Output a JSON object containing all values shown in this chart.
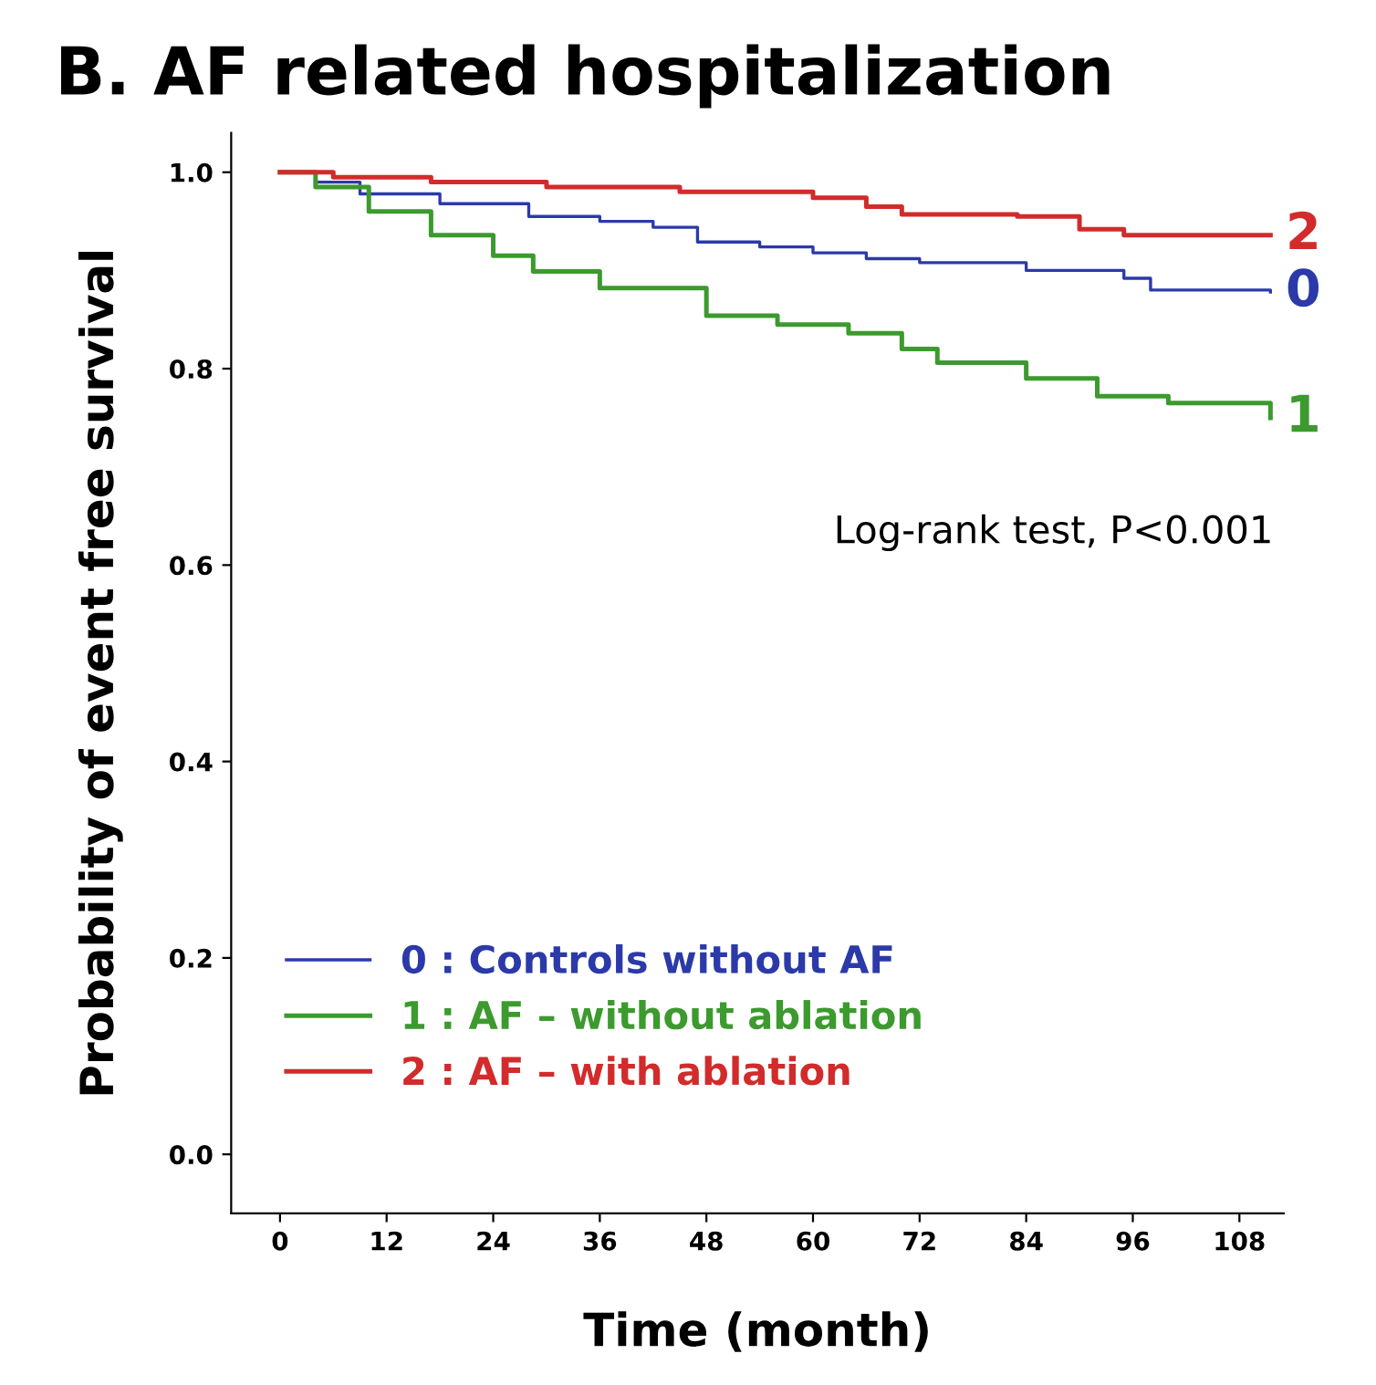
{
  "chart_data": {
    "type": "step",
    "title": "B. AF related hospitalization",
    "xlabel": "Time (month)",
    "ylabel": "Probability of event free survival",
    "xlim": [
      -5.5,
      113
    ],
    "xticks": [
      0,
      12,
      24,
      36,
      48,
      60,
      72,
      84,
      96,
      108
    ],
    "ylim": [
      -0.06,
      1.04
    ],
    "yticks": [
      {
        "value": 0,
        "label": "0.0"
      },
      {
        "value": 0.2,
        "label": "0.2"
      },
      {
        "value": 0.4,
        "label": "0.4"
      },
      {
        "value": 0.6,
        "label": "0.6"
      },
      {
        "value": 0.8,
        "label": "0.8"
      },
      {
        "value": 1,
        "label": "1.0"
      }
    ],
    "grid": false,
    "legend": "bottom left",
    "marker": "none",
    "line_style": "solid",
    "series": [
      {
        "name": "0 : Controls without AF",
        "color": "#2b3aa8",
        "x": [
          0,
          4,
          9,
          18,
          28,
          36,
          42,
          47,
          54,
          60,
          66,
          72,
          84,
          95,
          98,
          111.5
        ],
        "values": [
          1.0,
          0.99,
          0.978,
          0.968,
          0.955,
          0.95,
          0.944,
          0.929,
          0.924,
          0.918,
          0.912,
          0.908,
          0.9,
          0.892,
          0.88,
          0.878
        ]
      },
      {
        "name": "1 : AF – without ablation",
        "color": "#3c9a2e",
        "x": [
          0,
          4,
          10,
          17,
          24,
          28.5,
          36,
          48,
          56,
          64,
          70,
          74,
          84,
          92,
          100,
          111.5
        ],
        "values": [
          1.0,
          0.985,
          0.96,
          0.936,
          0.915,
          0.899,
          0.882,
          0.854,
          0.845,
          0.836,
          0.82,
          0.806,
          0.79,
          0.772,
          0.765,
          0.75
        ]
      },
      {
        "name": "2 : AF – with ablation",
        "color": "#d22b2b",
        "x": [
          0,
          6,
          17,
          30,
          45,
          60,
          66,
          70,
          83,
          90,
          95,
          111.5
        ],
        "values": [
          1.0,
          0.995,
          0.99,
          0.985,
          0.98,
          0.974,
          0.965,
          0.957,
          0.955,
          0.942,
          0.936,
          0.936
        ]
      }
    ],
    "annotations": [
      "0",
      "1",
      "2",
      "Log-rank test, P<0.001"
    ]
  }
}
